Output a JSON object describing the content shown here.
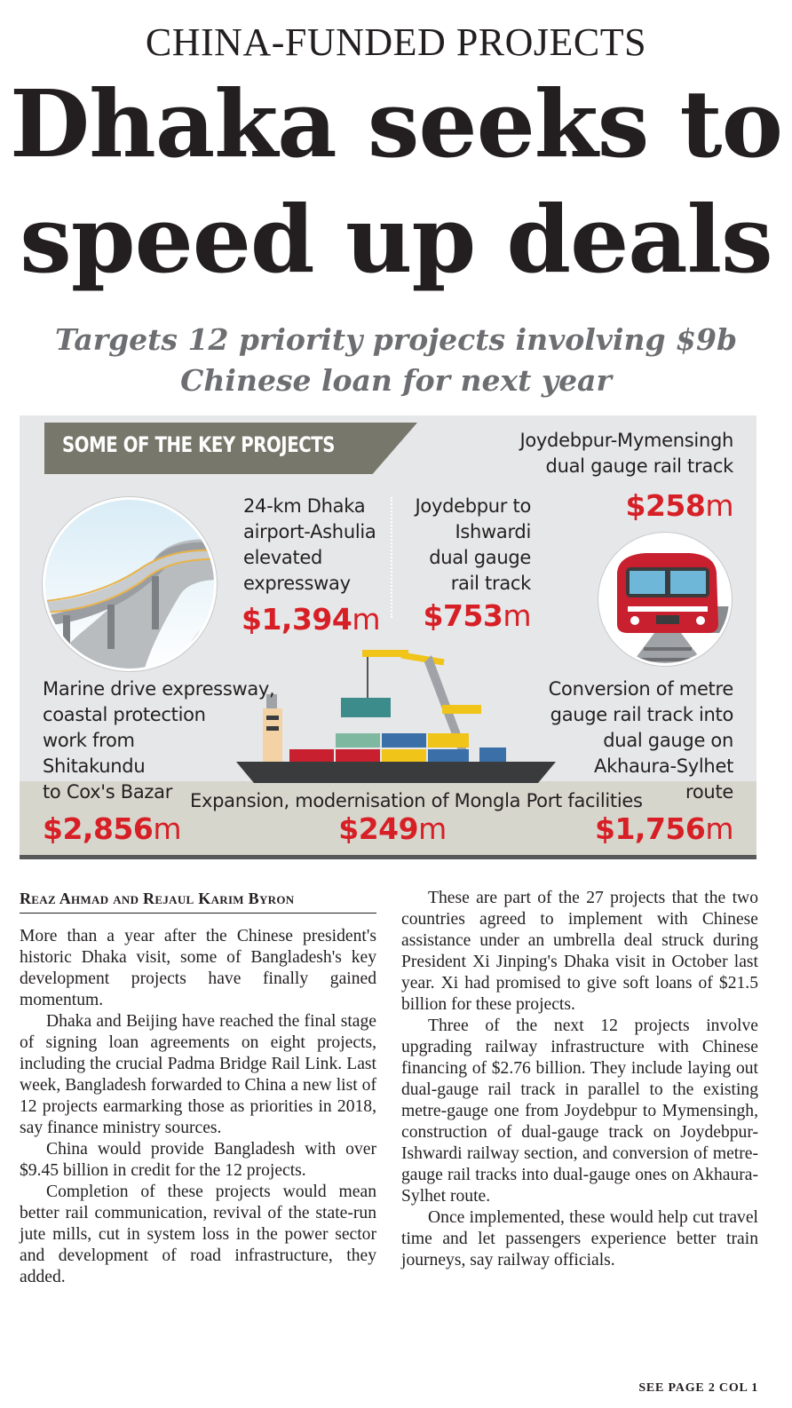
{
  "kicker": "CHINA-FUNDED PROJECTS",
  "headline": {
    "line1": "Dhaka seeks to",
    "line2": "speed up deals"
  },
  "subhead": {
    "line1": "Targets 12 priority projects involving $9b",
    "line2": "Chinese loan for next year"
  },
  "infographic": {
    "banner": "SOME OF THE KEY PROJECTS",
    "projects": [
      {
        "lines": [
          "24-km Dhaka",
          "airport-Ashulia",
          "elevated",
          "expressway"
        ],
        "amount": "$1,394",
        "unit": "m"
      },
      {
        "lines": [
          "Joydebpur to",
          "Ishwardi",
          "dual gauge",
          "rail track"
        ],
        "amount": "$753",
        "unit": "m"
      },
      {
        "lines": [
          "Joydebpur-Mymensingh",
          "dual gauge rail track"
        ],
        "amount": "$258",
        "unit": "m"
      },
      {
        "lines": [
          "Marine drive expressway,",
          "coastal protection",
          "work from",
          "Shitakundu",
          "to Cox's Bazar"
        ],
        "amount": "$2,856",
        "unit": "m"
      },
      {
        "lines": [
          "Expansion, modernisation of Mongla Port facilities"
        ],
        "amount": "$249",
        "unit": "m"
      },
      {
        "lines": [
          "Conversion of metre",
          "gauge rail track into",
          "dual gauge on",
          "Akhaura-Sylhet",
          "route"
        ],
        "amount": "$1,756",
        "unit": "m"
      }
    ],
    "colors": {
      "amount": "#d71f26",
      "banner": "#77776b",
      "panel": "#e6e7e8",
      "band": "#d7d6cd"
    },
    "illustrations": [
      "elevated-expressway-image",
      "train-image",
      "cargo-ship-image"
    ]
  },
  "byline": "Reaz Ahmad and Rejaul Karim Byron",
  "article": {
    "left": [
      "More than a year after the Chinese president's historic Dhaka visit, some of Bangladesh's key development projects have finally gained momentum.",
      "Dhaka and Beijing have reached the final stage of signing loan agreements on eight projects, including the crucial Padma Bridge Rail Link. Last week, Bangladesh forwarded to China a new list of 12 projects earmarking those as priorities in 2018, say finance ministry sources.",
      "China would provide Bangladesh with over $9.45 billion in credit for the 12 projects.",
      "Completion of these projects would mean better rail communication, revival of the state-run jute mills, cut in system loss in the power sector and development of road infrastructure, they added."
    ],
    "right": [
      "These are part of the 27 projects that the two countries agreed to implement with Chinese assistance under an umbrella deal struck during President Xi Jinping's Dhaka visit in October last year. Xi had promised to give soft loans of $21.5 billion for these projects.",
      "Three of the next 12 projects involve upgrading railway infrastructure with Chinese financing of $2.76 billion. They include laying out dual-gauge rail track in parallel to the existing metre-gauge one from Joydebpur to Mymensingh, construction of dual-gauge track on Joydebpur-Ishwardi railway section, and conversion of metre-gauge rail tracks into dual-gauge ones on Akhaura-Sylhet route.",
      "Once implemented, these would help cut travel time and let passengers experience better train journeys, say railway officials."
    ],
    "continuation": "SEE PAGE 2 COL 1"
  }
}
